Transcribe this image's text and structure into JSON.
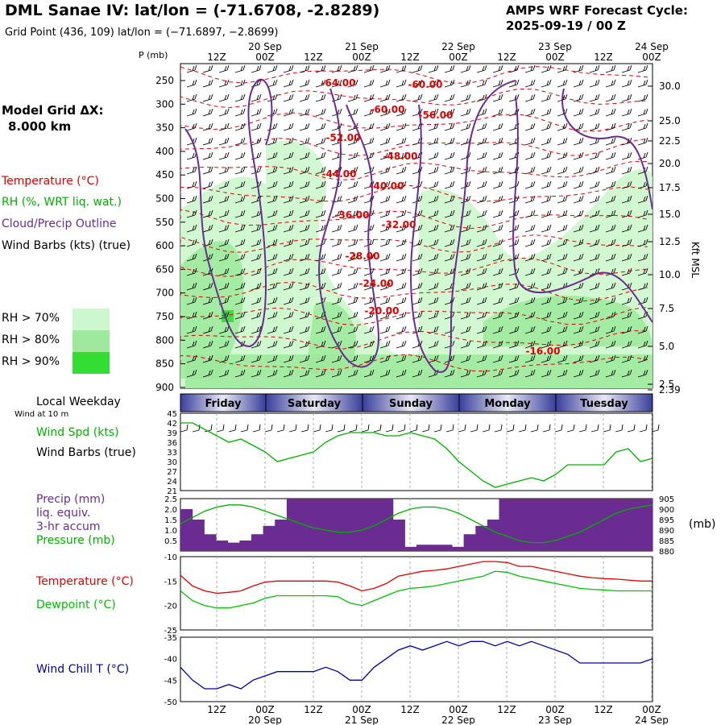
{
  "header": {
    "title": "DML Sanae IV:  lat/lon = (-71.6708, -2.8289)",
    "subtitle": "Grid Point (436, 109) lat/lon = (−71.6897, −2.8699)",
    "cycle_line1": "AMPS WRF Forecast Cycle:",
    "cycle_line2": "2025-09-19 / 00  Z"
  },
  "left_labels": {
    "model_grid_1": "Model Grid ΔX:",
    "model_grid_2": "8.000 km",
    "temperature": "Temperature (°C)",
    "rh": "RH (%, WRT liq. wat.)",
    "cloud": "Cloud/Precip Outline",
    "wind": "Wind Barbs (kts) (true)",
    "rh70": "RH > 70%",
    "rh80": "RH > 80%",
    "rh90": "RH > 90%",
    "local_weekday": "Local Weekday",
    "wind10m": "Wind at 10 m",
    "wind_spd": "Wind Spd (kts)",
    "wind_barbs": "Wind Barbs (true)",
    "precip1": "Precip (mm)",
    "precip2": "liq. equiv.",
    "precip3": "3-hr accum",
    "pressure": "Pressure (mb)",
    "temp2": "Temperature (°C)",
    "dewpoint": "Dewpoint (°C)",
    "windchill": "Wind Chill T (°C)",
    "mb_unit": "(mb)",
    "kft_msl": "Kft MSL",
    "p_mb": "P (mb)"
  },
  "colors": {
    "temperature": "#e00000",
    "rh": "#00b000",
    "cloud": "#6a2c91",
    "precip": "#6a2c91",
    "pressure": "#00b000",
    "dewpoint": "#00c000",
    "windchill": "#0000a0",
    "rh70": "#cdf7cd",
    "rh80": "#9ee99e",
    "rh90": "#33dd33"
  },
  "chart_data": [
    {
      "type": "heatmap",
      "name_hint": "cross-section",
      "y_pressure_ticks": [
        "250",
        "300",
        "350",
        "400",
        "450",
        "500",
        "550",
        "600",
        "650",
        "700",
        "750",
        "800",
        "850",
        "900"
      ],
      "y_height_ticks": [
        "30.0",
        "25.0",
        "22.5",
        "20.0",
        "17.5",
        "15.0",
        "12.5",
        "10.0",
        "7.5",
        "5.0",
        "2.5",
        "2.39"
      ],
      "top_time_ticks": [
        "12Z",
        "00Z",
        "12Z",
        "00Z",
        "12Z",
        "00Z",
        "12Z",
        "00Z",
        "12Z",
        "00Z"
      ],
      "top_date_ticks": [
        "20 Sep",
        "21 Sep",
        "22 Sep",
        "23 Sep",
        "24 Sep"
      ],
      "temperature_labels": [
        "-64.00",
        "-60.00",
        "-60.00",
        "-56.00",
        "-52.00",
        "-48.00",
        "-44.00",
        "-40.00",
        "-36.00",
        "-32.00",
        "-28.00",
        "-24.00",
        "-20.00",
        "-16.00"
      ],
      "weekdays": [
        "Friday",
        "Saturday",
        "Sunday",
        "Monday",
        "Tuesday"
      ]
    },
    {
      "type": "line",
      "name_hint": "wind speed",
      "x": [
        0,
        1,
        2,
        3,
        4,
        5,
        6,
        7,
        8,
        9,
        10,
        11,
        12,
        13,
        14,
        15,
        16,
        17,
        18,
        19,
        20,
        21,
        22,
        23,
        24,
        25,
        26,
        27,
        28,
        29,
        30,
        31,
        32,
        33,
        34,
        35,
        36,
        37,
        38,
        39
      ],
      "values": [
        42,
        42,
        40,
        38,
        36,
        37,
        35,
        33,
        30,
        31,
        32,
        33,
        36,
        38,
        39,
        39,
        39,
        38,
        38,
        39,
        38,
        37,
        34,
        30,
        27,
        24,
        22,
        23,
        24,
        25,
        24,
        26,
        29,
        29,
        29,
        29,
        33,
        34,
        30,
        31
      ],
      "ylim": [
        21,
        45
      ],
      "y_ticks": [
        21,
        24,
        27,
        30,
        33,
        36,
        39,
        42,
        45
      ]
    },
    {
      "type": "bar",
      "name_hint": "precip + pressure",
      "precip_values": [
        2.0,
        1.5,
        0.8,
        0.5,
        0.4,
        0.5,
        0.8,
        1.2,
        1.5,
        2.5,
        2.5,
        2.5,
        2.5,
        2.5,
        2.5,
        2.5,
        2.5,
        2.5,
        1.5,
        0.2,
        0.3,
        0.3,
        0.3,
        0.2,
        0.8,
        1.2,
        1.5,
        2.5,
        2.5,
        2.5,
        2.5,
        2.5,
        2.5,
        2.5,
        2.5,
        2.5,
        2.5,
        2.5,
        2.5,
        2.5
      ],
      "precip_ylim": [
        0,
        2.5
      ],
      "precip_ticks": [
        "0.5",
        "1.0",
        "1.5",
        "2.0",
        "2.5"
      ],
      "pressure_values": [
        893,
        896,
        899,
        901,
        902,
        902,
        901,
        899,
        897,
        895,
        893,
        891,
        890,
        889,
        889,
        890,
        892,
        895,
        898,
        900,
        901,
        901,
        900,
        898,
        895,
        892,
        889,
        887,
        885,
        884,
        884,
        885,
        887,
        889,
        892,
        895,
        898,
        900,
        901,
        902
      ],
      "pressure_ylim": [
        880,
        905
      ],
      "pressure_ticks": [
        "880",
        "885",
        "890",
        "895",
        "900",
        "905"
      ]
    },
    {
      "type": "line",
      "name_hint": "temperature + dewpoint",
      "temperature": [
        -13.8,
        -16.0,
        -17.0,
        -17.5,
        -17.3,
        -17.0,
        -16.0,
        -15.2,
        -15.0,
        -15.0,
        -15.0,
        -15.0,
        -15.0,
        -15.2,
        -16.0,
        -17.0,
        -16.5,
        -15.5,
        -14.0,
        -13.5,
        -13.0,
        -12.8,
        -12.5,
        -12.0,
        -11.5,
        -11.0,
        -11.0,
        -11.2,
        -12.0,
        -12.0,
        -12.5,
        -13.0,
        -13.5,
        -14.0,
        -14.3,
        -14.5,
        -14.6,
        -14.8,
        -15.0,
        -15.0
      ],
      "dewpoint": [
        -17.0,
        -19.0,
        -20.0,
        -20.5,
        -20.5,
        -20.0,
        -19.5,
        -18.5,
        -18.0,
        -18.0,
        -18.0,
        -18.0,
        -18.0,
        -18.2,
        -19.5,
        -20.0,
        -19.0,
        -18.0,
        -17.0,
        -16.5,
        -16.3,
        -16.0,
        -15.5,
        -15.0,
        -14.5,
        -14.0,
        -13.0,
        -13.2,
        -14.0,
        -14.5,
        -15.0,
        -15.5,
        -16.0,
        -16.5,
        -16.7,
        -16.8,
        -17.0,
        -17.0,
        -17.0,
        -17.0
      ],
      "ylim": [
        -25,
        -10
      ],
      "y_ticks": [
        "-10",
        "-15",
        "-20",
        "-25"
      ]
    },
    {
      "type": "line",
      "name_hint": "wind chill",
      "values": [
        -42,
        -45,
        -47,
        -47,
        -46,
        -47,
        -45,
        -44,
        -43,
        -43,
        -43,
        -43,
        -42,
        -43,
        -45,
        -45,
        -42,
        -40,
        -38,
        -37,
        -38,
        -37,
        -36,
        -37,
        -36,
        -36,
        -37,
        -36,
        -37,
        -36,
        -37,
        -38,
        -39,
        -41,
        -41,
        -41,
        -41,
        -41,
        -41,
        -40
      ],
      "ylim": [
        -50,
        -35
      ],
      "y_ticks": [
        "-35",
        "-40",
        "-45",
        "-50"
      ]
    }
  ],
  "bottom_time_ticks": [
    "12Z",
    "00Z",
    "12Z",
    "00Z",
    "12Z",
    "00Z",
    "12Z",
    "00Z",
    "12Z",
    "00Z"
  ],
  "bottom_date_ticks": [
    "20 Sep",
    "21 Sep",
    "22 Sep",
    "23 Sep",
    "24 Sep"
  ]
}
